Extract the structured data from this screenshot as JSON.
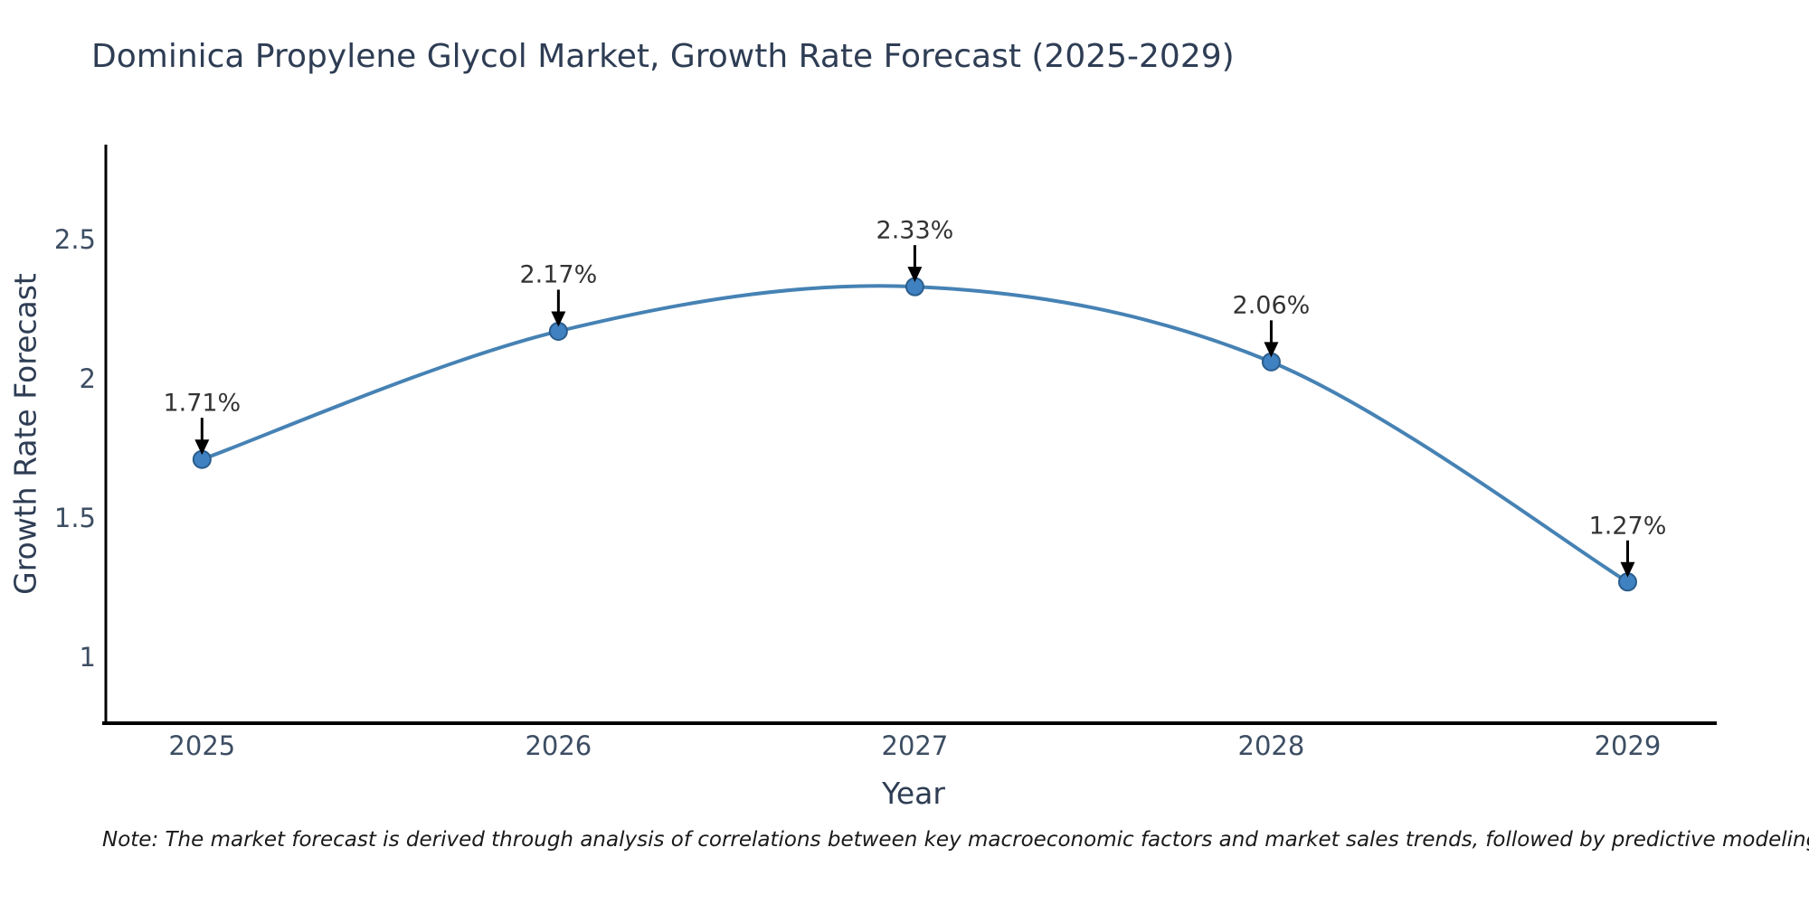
{
  "title": "Dominica Propylene Glycol Market, Growth Rate Forecast (2025-2029)",
  "note": "Note: The market forecast is derived through analysis of correlations between key macroeconomic factors and market sales trends, followed by predictive modeling to project future sales",
  "chart_data": {
    "type": "line",
    "title": "Dominica Propylene Glycol Market, Growth Rate Forecast (2025-2029)",
    "xlabel": "Year",
    "ylabel": "Growth Rate Forecast",
    "categories": [
      "2025",
      "2026",
      "2027",
      "2028",
      "2029"
    ],
    "x_values": [
      2025,
      2026,
      2027,
      2028,
      2029
    ],
    "values": [
      1.71,
      2.17,
      2.33,
      2.06,
      1.27
    ],
    "point_labels": [
      "1.71%",
      "2.17%",
      "2.33%",
      "2.06%",
      "1.27%"
    ],
    "ytick_values": [
      2.5,
      2.0,
      1.5,
      1.0
    ],
    "ytick_labels": [
      "2.5",
      "2",
      "1.5",
      "1"
    ],
    "xlim": [
      2024.72,
      2029.25
    ],
    "ylim": [
      0.763,
      2.84
    ],
    "grid": false,
    "legend": false,
    "curve_style": "smooth-spline",
    "annotation_arrows": "black-down-arrows",
    "colors": {
      "line": "#4682b4",
      "marker_fill": "#3f81c1",
      "marker_edge": "#2a5d8c",
      "axis": "#000000",
      "title_text": "#2e3d54",
      "tick_text": "#3d4e63",
      "annotation_text": "#333333",
      "arrow": "#000000",
      "background": "#ffffff"
    }
  }
}
